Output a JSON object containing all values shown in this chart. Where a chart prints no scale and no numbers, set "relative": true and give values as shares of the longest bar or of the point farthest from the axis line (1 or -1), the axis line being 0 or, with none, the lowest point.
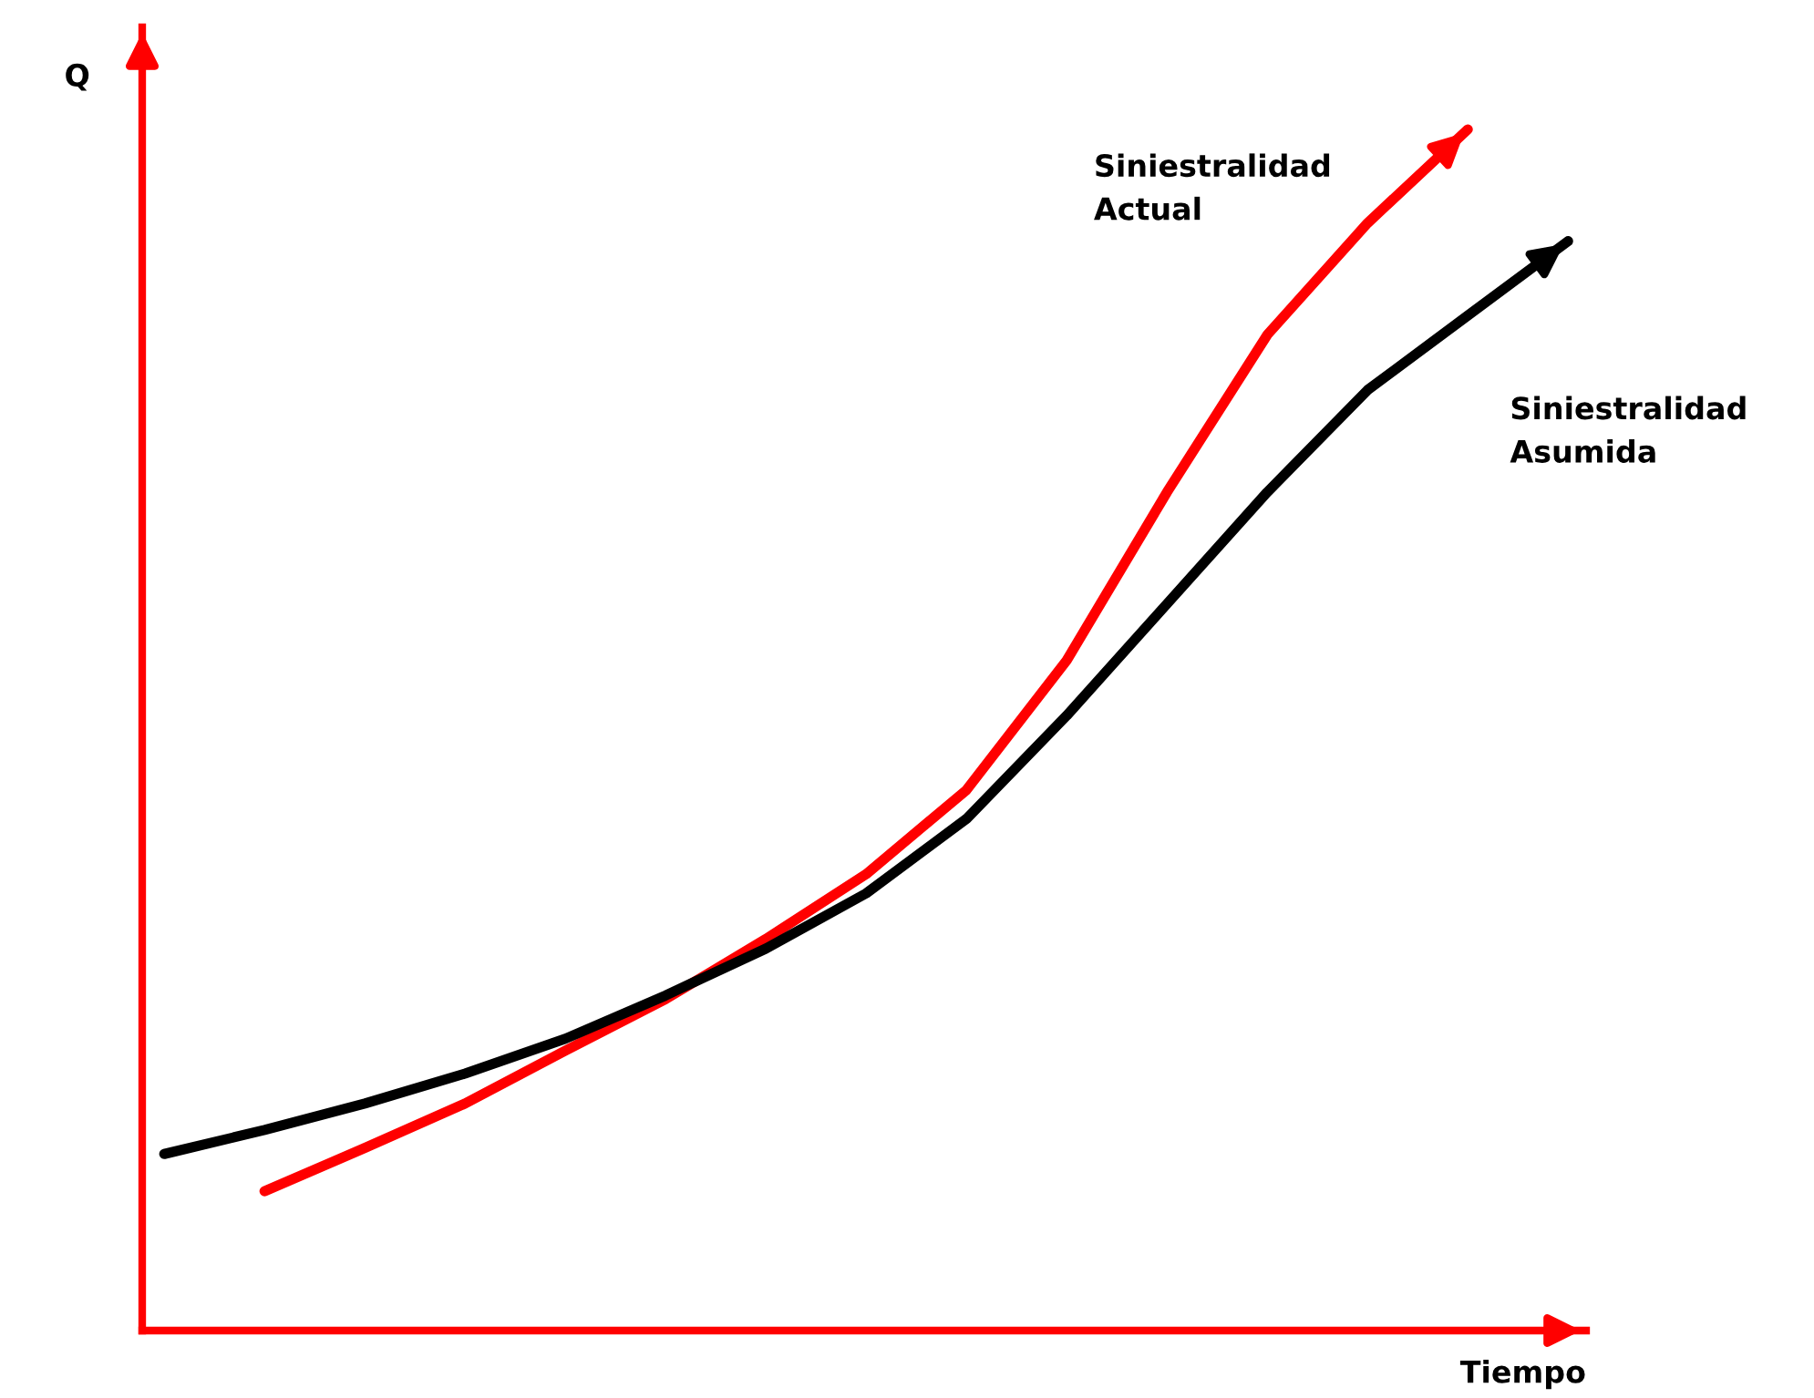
{
  "chart_data": {
    "type": "line",
    "relative": true,
    "xlabel": "Tiempo",
    "ylabel": "Q",
    "categories": [
      null,
      null,
      null,
      null,
      null,
      null,
      null,
      null,
      null,
      null,
      null,
      null,
      null,
      null,
      null
    ],
    "series": [
      {
        "name": "Siniestralidad Actual",
        "color": "#ff0000",
        "values": [
          null,
          0.116,
          0.152,
          0.189,
          0.233,
          0.276,
          0.326,
          0.38,
          0.45,
          0.558,
          0.698,
          0.829,
          0.922,
          1.0,
          null
        ]
      },
      {
        "name": "Siniestralidad Asumida",
        "color": "#000000",
        "values": [
          0.147,
          0.167,
          0.189,
          0.214,
          0.243,
          0.279,
          0.318,
          0.364,
          0.426,
          0.512,
          0.605,
          0.698,
          0.783,
          0.845,
          0.907
        ]
      }
    ],
    "grid": false,
    "legend": false,
    "marker": "none",
    "line_style": "solid"
  }
}
